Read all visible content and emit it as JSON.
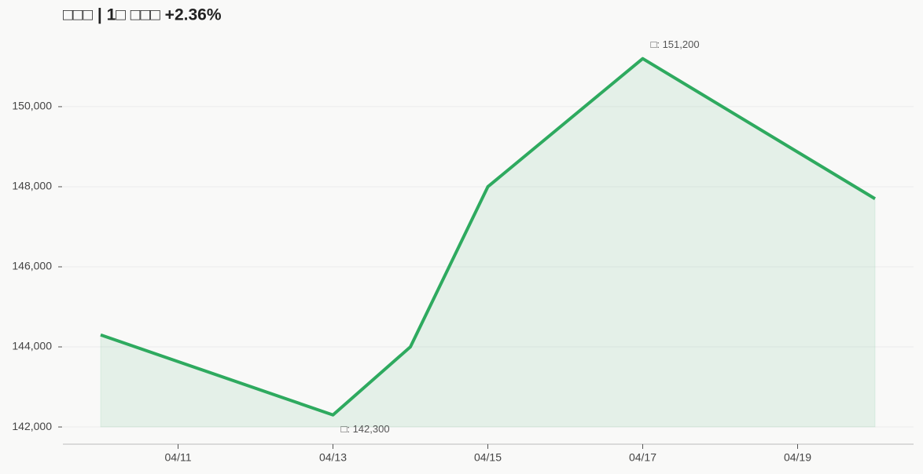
{
  "chart_data": {
    "type": "line",
    "title": "□□□  |  1□ □□□  +2.36%",
    "x": [
      "04/10",
      "04/13",
      "04/14",
      "04/15",
      "04/17",
      "04/20"
    ],
    "values": [
      144300,
      142300,
      144000,
      148000,
      151200,
      147700
    ],
    "color": "#2eaa5f",
    "ylim": [
      141570,
      151880
    ],
    "yticks": [
      {
        "value": 142000,
        "label": "142,000"
      },
      {
        "value": 144000,
        "label": "144,000"
      },
      {
        "value": 146000,
        "label": "146,000"
      },
      {
        "value": 148000,
        "label": "148,000"
      },
      {
        "value": 150000,
        "label": "150,000"
      }
    ],
    "xticks": [
      "04/11",
      "04/13",
      "04/15",
      "04/17",
      "04/19"
    ],
    "grid": true,
    "annotations": [
      {
        "text": "□: 151,200",
        "x": "04/17",
        "y": 151200,
        "position": "above"
      },
      {
        "text": "□: 142,300",
        "x": "04/13",
        "y": 142300,
        "position": "below"
      }
    ]
  }
}
